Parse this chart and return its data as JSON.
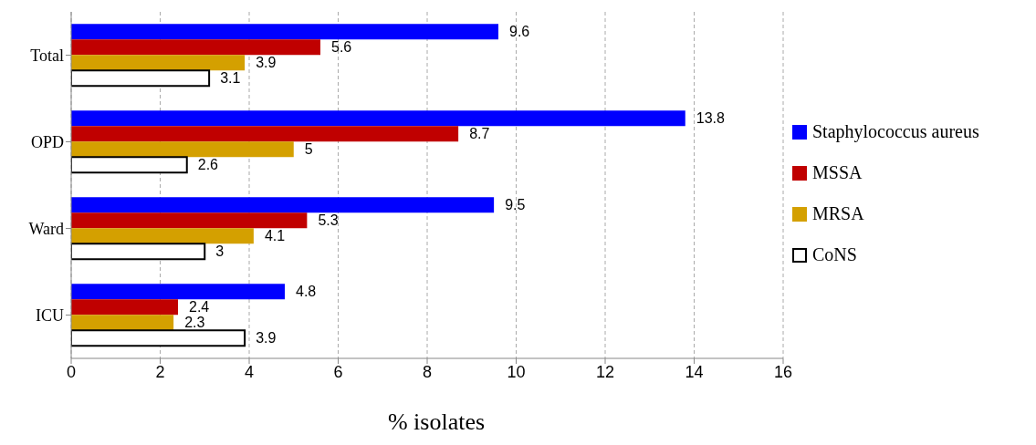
{
  "chart_data": {
    "type": "bar",
    "orientation": "horizontal",
    "xlabel": "% isolates",
    "categories": [
      "Total",
      "OPD",
      "Ward",
      "ICU"
    ],
    "series": [
      {
        "name": "Staphylococcus aureus",
        "color": "#0000ff",
        "values": [
          9.6,
          13.8,
          9.5,
          4.8
        ]
      },
      {
        "name": "MSSA",
        "color": "#c00000",
        "values": [
          5.6,
          8.7,
          5.3,
          2.4
        ]
      },
      {
        "name": "MRSA",
        "color": "#d4a000",
        "values": [
          3.9,
          5,
          4.1,
          2.3
        ]
      },
      {
        "name": "CoNS",
        "color": "#ffffff",
        "values": [
          3.1,
          2.6,
          3,
          3.9
        ]
      }
    ],
    "xlim": [
      0,
      16
    ],
    "xticks": [
      0,
      2,
      4,
      6,
      8,
      10,
      12,
      14,
      16
    ],
    "grid": "x",
    "legend": "right",
    "data_labels": true
  }
}
